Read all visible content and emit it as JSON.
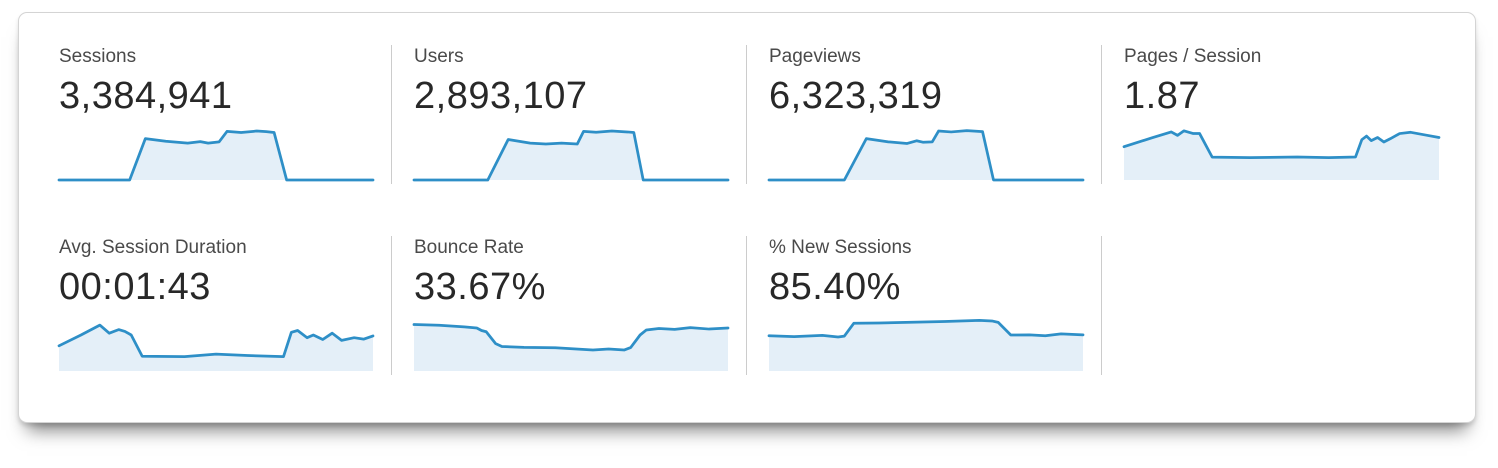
{
  "app": {
    "title": "Analytics audience overview metrics"
  },
  "colors": {
    "spark_line": "#2e8fc7",
    "spark_fill": "#e4eff8",
    "divider": "#cccccc",
    "label_text": "#4a4a4a",
    "value_text": "#282828"
  },
  "metrics": [
    {
      "label": "Sessions",
      "value": "3,384,941"
    },
    {
      "label": "Users",
      "value": "2,893,107"
    },
    {
      "label": "Pageviews",
      "value": "6,323,319"
    },
    {
      "label": "Pages / Session",
      "value": "1.87"
    },
    {
      "label": "Avg. Session Duration",
      "value": "00:01:43"
    },
    {
      "label": "Bounce Rate",
      "value": "33.67%"
    },
    {
      "label": "% New Sessions",
      "value": "85.40%"
    }
  ],
  "chart_data": [
    {
      "type": "area",
      "title": "Sessions sparkline",
      "x_range": [
        0,
        100
      ],
      "y_range": [
        0,
        30
      ],
      "points": [
        [
          0,
          30
        ],
        [
          22.5,
          30
        ],
        [
          27.5,
          7
        ],
        [
          34,
          8.5
        ],
        [
          41,
          9.5
        ],
        [
          45,
          8.7
        ],
        [
          47.5,
          9.5
        ],
        [
          51,
          8.8
        ],
        [
          53.5,
          3
        ],
        [
          58,
          3.6
        ],
        [
          63,
          2.8
        ],
        [
          66,
          3.1
        ],
        [
          68.5,
          3.6
        ],
        [
          72.5,
          30
        ],
        [
          100,
          30
        ]
      ]
    },
    {
      "type": "area",
      "title": "Users sparkline",
      "x_range": [
        0,
        100
      ],
      "y_range": [
        0,
        30
      ],
      "points": [
        [
          0,
          30
        ],
        [
          23.5,
          30
        ],
        [
          30,
          7.5
        ],
        [
          37,
          9.5
        ],
        [
          42,
          10
        ],
        [
          47,
          9.5
        ],
        [
          52,
          10
        ],
        [
          54,
          3
        ],
        [
          58,
          3.5
        ],
        [
          63,
          2.8
        ],
        [
          68,
          3.3
        ],
        [
          70,
          3.6
        ],
        [
          73,
          30
        ],
        [
          100,
          30
        ]
      ]
    },
    {
      "type": "area",
      "title": "Pageviews sparkline",
      "x_range": [
        0,
        100
      ],
      "y_range": [
        0,
        30
      ],
      "points": [
        [
          0,
          30
        ],
        [
          24,
          30
        ],
        [
          31,
          7
        ],
        [
          38,
          8.8
        ],
        [
          44,
          9.7
        ],
        [
          47,
          8.2
        ],
        [
          49,
          9
        ],
        [
          52,
          8.8
        ],
        [
          54,
          2.8
        ],
        [
          58,
          3.3
        ],
        [
          63,
          2.6
        ],
        [
          68,
          3.1
        ],
        [
          71.5,
          30
        ],
        [
          100,
          30
        ]
      ]
    },
    {
      "type": "area",
      "title": "Pages / Session sparkline",
      "x_range": [
        0,
        100
      ],
      "y_range": [
        0,
        30
      ],
      "points": [
        [
          0,
          11.5
        ],
        [
          9,
          6.5
        ],
        [
          15,
          3.3
        ],
        [
          17,
          5.2
        ],
        [
          19,
          2.7
        ],
        [
          22,
          4.2
        ],
        [
          24,
          4.2
        ],
        [
          28,
          17.3
        ],
        [
          40,
          17.6
        ],
        [
          55,
          17.2
        ],
        [
          65,
          17.6
        ],
        [
          73.5,
          17.2
        ],
        [
          75.5,
          7.6
        ],
        [
          77,
          5.6
        ],
        [
          78.5,
          8.1
        ],
        [
          80.5,
          6.4
        ],
        [
          82.5,
          8.9
        ],
        [
          84.5,
          7.1
        ],
        [
          87.5,
          4.2
        ],
        [
          91,
          3.5
        ],
        [
          96,
          5.1
        ],
        [
          100,
          6.4
        ]
      ]
    },
    {
      "type": "area",
      "title": "Avg. Session Duration sparkline",
      "x_range": [
        0,
        100
      ],
      "y_range": [
        0,
        30
      ],
      "points": [
        [
          0,
          16
        ],
        [
          7,
          10
        ],
        [
          13,
          4.5
        ],
        [
          16,
          9
        ],
        [
          19,
          7
        ],
        [
          21,
          8
        ],
        [
          23,
          10
        ],
        [
          26.5,
          21.8
        ],
        [
          40,
          22
        ],
        [
          50,
          20.6
        ],
        [
          60,
          21.4
        ],
        [
          71.5,
          22
        ],
        [
          74,
          8.5
        ],
        [
          76,
          7.5
        ],
        [
          79,
          11.5
        ],
        [
          81,
          10
        ],
        [
          84,
          12.5
        ],
        [
          87,
          9
        ],
        [
          90,
          13
        ],
        [
          94,
          11.5
        ],
        [
          97,
          12.3
        ],
        [
          100,
          10.5
        ]
      ]
    },
    {
      "type": "area",
      "title": "Bounce Rate sparkline",
      "x_range": [
        0,
        100
      ],
      "y_range": [
        0,
        30
      ],
      "points": [
        [
          0,
          4.2
        ],
        [
          8,
          4.6
        ],
        [
          16,
          5.5
        ],
        [
          20,
          6.1
        ],
        [
          21.5,
          7.5
        ],
        [
          23,
          8.2
        ],
        [
          26,
          14.8
        ],
        [
          28,
          16.4
        ],
        [
          35,
          16.9
        ],
        [
          45,
          17.1
        ],
        [
          57,
          18.3
        ],
        [
          62,
          17.8
        ],
        [
          67,
          18.3
        ],
        [
          69,
          17
        ],
        [
          72,
          10
        ],
        [
          74,
          7.2
        ],
        [
          78,
          6.4
        ],
        [
          83,
          6.9
        ],
        [
          88,
          5.9
        ],
        [
          94,
          6.7
        ],
        [
          100,
          6.1
        ]
      ]
    },
    {
      "type": "area",
      "title": "% New Sessions sparkline",
      "x_range": [
        0,
        100
      ],
      "y_range": [
        0,
        30
      ],
      "points": [
        [
          0,
          10.4
        ],
        [
          8,
          10.9
        ],
        [
          17,
          10.2
        ],
        [
          22,
          11.1
        ],
        [
          24,
          10.6
        ],
        [
          27,
          3.5
        ],
        [
          35,
          3.3
        ],
        [
          56,
          2.5
        ],
        [
          67,
          1.9
        ],
        [
          71,
          2.2
        ],
        [
          73,
          3
        ],
        [
          77,
          10
        ],
        [
          83,
          9.9
        ],
        [
          88,
          10.4
        ],
        [
          93,
          9.4
        ],
        [
          100,
          9.9
        ]
      ]
    }
  ]
}
